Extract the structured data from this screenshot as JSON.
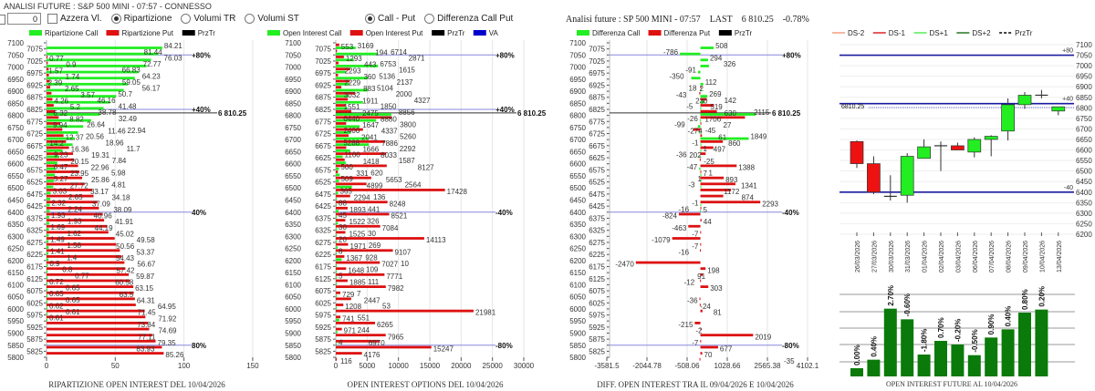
{
  "header": {
    "title": "ANALISI FUTURE : S&P 500 MINI - 07:57 - CONNESSO",
    "number_input_value": "0",
    "azzera_label": "Azzera Vl.",
    "radio_ripartizione": "Ripartizione",
    "radio_volumi_tr": "Volumi TR",
    "radio_volumi_st": "Volumi ST",
    "radio_call_put": "Call - Put",
    "radio_diff_call_put": "Differenza Call Put",
    "info_label": "Analisi future : SP 500 MINI - 07:57",
    "last_label": "LAST",
    "last_value": "6 810.25",
    "last_change": "-0.78%"
  },
  "colors": {
    "call": "#22ee22",
    "put": "#dd1111",
    "prztr": "#000000",
    "va": "#0000cc",
    "level_line": "#8888dd",
    "oi_bar": "#0a7a0a",
    "candle_up": "#22ee22",
    "candle_down": "#ee1111"
  },
  "chart_data": [
    {
      "type": "bar",
      "orientation": "horizontal",
      "title": "RIPARTIZIONE OPEN INTEREST DEL 10/04/2026",
      "legend": [
        "Ripartizione Call",
        "Ripartizione Put",
        "PrzTr"
      ],
      "xlim": [
        0,
        150
      ],
      "xticks": [
        0,
        50,
        100,
        150
      ],
      "ylim": [
        5800,
        7100
      ],
      "strikes": [
        7075,
        7050,
        7025,
        7000,
        6975,
        6950,
        6925,
        6900,
        6875,
        6850,
        6825,
        6800,
        6775,
        6750,
        6725,
        6700,
        6675,
        6650,
        6625,
        6600,
        6575,
        6550,
        6525,
        6500,
        6475,
        6450,
        6425,
        6400,
        6375,
        6350,
        6325,
        6300,
        6275,
        6250,
        6225,
        6200,
        6175,
        6150,
        6125,
        6100,
        6075,
        6050,
        6025,
        6000,
        5975,
        5950,
        5925,
        5900,
        5875,
        5850,
        5825
      ],
      "series": [
        {
          "name": "Ripartizione Call",
          "values": [
            84.21,
            81.44,
            76.03,
            72.77,
            66.83,
            64.23,
            59.05,
            56.17,
            50.7,
            46.16,
            41.48,
            38.78,
            32.49,
            26.64,
            22.94,
            20.56,
            18.96,
            11.7,
            9.23,
            7.84,
            6.47,
            5.98,
            5.27,
            4.81,
            3.03,
            2.65,
            2.32,
            2.24,
            1.93,
            1.93,
            1.69,
            1.62,
            1.49,
            1.58,
            1.41,
            1.4,
            0.9,
            0.8,
            0.77,
            0.72,
            0.65,
            0.65,
            0.65,
            0.62,
            0.61,
            0.61,
            null,
            null,
            null,
            null,
            null
          ]
        },
        {
          "name": "Ripartizione Put",
          "values": [
            null,
            0.77,
            0.9,
            1.57,
            1.74,
            2.39,
            2.65,
            3.57,
            4.26,
            5.2,
            6.32,
            8.82,
            9.94,
            11.46,
            12.37,
            14.2,
            16.36,
            19.31,
            20.15,
            22.96,
            23.95,
            25.86,
            27.72,
            33.17,
            34.18,
            37.09,
            38.09,
            40.96,
            41.91,
            44.19,
            45.02,
            49.58,
            50.56,
            53.37,
            54.43,
            56.67,
            57.42,
            59.87,
            60.58,
            63.15,
            63.5,
            64.31,
            64.95,
            71.45,
            71.92,
            73.84,
            74.69,
            77.11,
            79.35,
            83.93,
            85.26
          ]
        }
      ],
      "levels": [
        {
          "strike": 7050,
          "label": "+80%"
        },
        {
          "strike": 6825,
          "label": "+40%"
        },
        {
          "strike": 6400,
          "label": "40%"
        },
        {
          "strike": 5850,
          "label": "80%"
        }
      ],
      "prztr": {
        "value": 6810.25,
        "label": "6 810.25"
      }
    },
    {
      "type": "bar",
      "orientation": "horizontal",
      "title": "OPEN INTEREST OPTIONS DEL 10/04/2026",
      "legend": [
        "Open Interest Call",
        "Open Interest Put",
        "PrzTr",
        "VA"
      ],
      "xlim": [
        0,
        30000
      ],
      "xticks": [
        0,
        5000,
        10000,
        15000,
        20000,
        25000,
        30000
      ],
      "ylim": [
        5800,
        7100
      ],
      "strikes": [
        7100,
        7075,
        7050,
        7025,
        7000,
        6975,
        6950,
        6925,
        6900,
        6875,
        6850,
        6825,
        6800,
        6775,
        6750,
        6725,
        6700,
        6675,
        6650,
        6625,
        6600,
        6575,
        6550,
        6525,
        6500,
        6475,
        6450,
        6425,
        6400,
        6375,
        6350,
        6325,
        6300,
        6275,
        6250,
        6225,
        6200,
        6175,
        6150,
        6125,
        6100,
        6075,
        6050,
        6025,
        6000,
        5975,
        5950,
        5925,
        5900,
        5875,
        5850,
        5825,
        5800
      ],
      "series": [
        {
          "name": "Open Interest Call",
          "values": [
            null,
            3169,
            6714,
            2871,
            6753,
            1615,
            5136,
            2137,
            5104,
            2000,
            4327,
            1850,
            8856,
            6440,
            3800,
            2400,
            5260,
            5288,
            2292,
            1100,
            1587,
            500,
            620,
            509,
            2564,
            365,
            136,
            88,
            441,
            45,
            326,
            30,
            30,
            20,
            269,
            8,
            928,
            10,
            109,
            5,
            111,
            null,
            7,
            null,
            53,
            null,
            551,
            null,
            244,
            null,
            4,
            null,
            null
          ]
        },
        {
          "name": "Open Interest Put",
          "values": [
            553,
            194,
            1293,
            443,
            2293,
            360,
            2229,
            883,
            3032,
            1911,
            1551,
            2475,
            8880,
            1647,
            4337,
            2041,
            7886,
            1666,
            8033,
            1418,
            8127,
            331,
            5653,
            4899,
            17428,
            2294,
            8248,
            1893,
            8521,
            1522,
            7084,
            1525,
            14113,
            1971,
            9107,
            1367,
            7027,
            1648,
            7771,
            1885,
            7982,
            729,
            2447,
            1208,
            21981,
            741,
            6265,
            971,
            7965,
            6970,
            15247,
            4176,
            116
          ]
        }
      ],
      "levels": [
        {
          "strike": 7050,
          "label": "+80%"
        },
        {
          "strike": 6825,
          "label": "+40%"
        },
        {
          "strike": 6400,
          "label": "-40%"
        },
        {
          "strike": 5850,
          "label": "-80%"
        }
      ],
      "prztr": {
        "value": 6810.25,
        "label": "6 810.25"
      }
    },
    {
      "type": "bar",
      "orientation": "horizontal",
      "title": "DIFF. OPEN INTEREST TRA IL 09/04/2026 E 10/04/2026",
      "legend": [
        "Differenza Call",
        "Differenza Put",
        "PrzTr"
      ],
      "xlim": [
        -3581.5,
        4102.1
      ],
      "xticks": [
        "-3581.5",
        "-2044.78",
        "-508.06",
        "1028.66",
        "2565.38",
        "4102.1"
      ],
      "ylim": [
        5800,
        7100
      ],
      "strikes": [
        7100,
        7075,
        7050,
        7025,
        7000,
        6975,
        6950,
        6925,
        6900,
        6875,
        6850,
        6825,
        6800,
        6775,
        6750,
        6725,
        6700,
        6675,
        6650,
        6625,
        6600,
        6575,
        6550,
        6525,
        6500,
        6475,
        6450,
        6425,
        6400,
        6375,
        6350,
        6325,
        6300,
        6275,
        6250,
        6225,
        6200,
        6175,
        6150,
        6125,
        6100,
        6075,
        6050,
        6025,
        6000,
        5975,
        5950,
        5925,
        5900,
        5875,
        5850,
        5825,
        5800
      ],
      "series": [
        {
          "name": "Differenza Call",
          "values": [
            null,
            508,
            -786,
            294,
            326,
            -91,
            -350,
            112,
            18,
            269,
            142,
            -5,
            2115,
            -26,
            -99,
            -45,
            1849,
            -1,
            1,
            -36,
            null,
            -47,
            1,
            1,
            -3,
            null,
            null,
            -1,
            -16,
            null,
            null,
            null,
            null,
            null,
            null,
            null,
            null,
            null,
            null,
            null,
            null,
            null,
            null,
            null,
            null,
            null,
            null,
            null,
            null,
            null,
            null,
            null,
            null
          ]
        },
        {
          "name": "Differenza Put",
          "values": [
            null,
            null,
            null,
            null,
            null,
            null,
            null,
            2,
            -43,
            230,
            519,
            630,
            1706,
            27,
            -274,
            61,
            860,
            497,
            202,
            -25,
            1388,
            7,
            893,
            1341,
            1172,
            874,
            2293,
            5,
            -824,
            44,
            -463,
            -7,
            -1079,
            -7,
            -16,
            null,
            -2470,
            198,
            91,
            -12,
            303,
            null,
            -36,
            -24,
            81,
            null,
            -215,
            -2,
            2019,
            -7,
            677,
            70,
            -35
          ]
        }
      ],
      "levels": [
        {
          "strike": 7050,
          "label": "+80%"
        },
        {
          "strike": 6400,
          "label": "-40%"
        },
        {
          "strike": 5850,
          "label": "-80%"
        }
      ],
      "prztr": {
        "value": 6810.25,
        "label": "6 810.25"
      }
    },
    {
      "type": "candlestick",
      "legend": [
        "DS-2",
        "DS-1",
        "DS+1",
        "DS+2",
        "PrzTr"
      ],
      "legend_colors": [
        "#f0a080",
        "#dd2222",
        "#55ee55",
        "#227722",
        "#000000"
      ],
      "ylim": [
        6200,
        7100
      ],
      "yticks": [
        6200,
        6250,
        6300,
        6350,
        6400,
        6450,
        6500,
        6550,
        6600,
        6650,
        6700,
        6750,
        6800,
        6850,
        6900,
        6950,
        7000,
        7050,
        7100
      ],
      "candles": [
        {
          "date": "26/03/2026",
          "open": 6640,
          "high": 6645,
          "low": 6515,
          "close": 6535
        },
        {
          "date": "27/03/2026",
          "open": 6535,
          "high": 6570,
          "low": 6390,
          "close": 6400
        },
        {
          "date": "30/03/2026",
          "open": 6380,
          "high": 6480,
          "low": 6360,
          "close": 6380
        },
        {
          "date": "31/03/2026",
          "open": 6385,
          "high": 6585,
          "low": 6350,
          "close": 6570
        },
        {
          "date": "01/04/2026",
          "open": 6560,
          "high": 6650,
          "low": 6560,
          "close": 6615
        },
        {
          "date": "02/04/2026",
          "open": 6620,
          "high": 6640,
          "low": 6500,
          "close": 6620
        },
        {
          "date": "03/04/2026",
          "open": 6620,
          "high": 6635,
          "low": 6600,
          "close": 6600
        },
        {
          "date": "06/04/2026",
          "open": 6590,
          "high": 6660,
          "low": 6565,
          "close": 6650
        },
        {
          "date": "07/04/2026",
          "open": 6650,
          "high": 6670,
          "low": 6570,
          "close": 6665
        },
        {
          "date": "08/04/2026",
          "open": 6690,
          "high": 6845,
          "low": 6645,
          "close": 6815
        },
        {
          "date": "09/04/2026",
          "open": 6815,
          "high": 6875,
          "low": 6795,
          "close": 6860
        },
        {
          "date": "10/04/2026",
          "open": 6860,
          "high": 6885,
          "low": 6845,
          "close": 6860
        },
        {
          "date": "13/04/2026",
          "open": 6785,
          "high": 6805,
          "low": 6765,
          "close": 6805
        }
      ],
      "levels": [
        {
          "value": 7050,
          "label": "+80"
        },
        {
          "value": 6820,
          "label": "+40"
        },
        {
          "value": 6400,
          "label": "-40"
        }
      ],
      "prztr": {
        "value": 6810.25,
        "label": "6810.25"
      }
    },
    {
      "type": "bar",
      "title": "OPEN INTEREST FUTURE AL 10/04/2026",
      "ylim": [
        0,
        270
      ],
      "values": [
        27,
        55,
        223,
        188,
        72,
        117,
        105,
        70,
        128,
        155,
        210,
        220
      ],
      "labels": [
        "0.00%",
        "0.40%",
        "2.70%",
        "-0.60%",
        "-1.80%",
        "0.70%",
        "-0.20%",
        "-0.50%",
        "0.90%",
        "0.40%",
        "0.80%",
        "0.20%"
      ],
      "grid": true
    }
  ]
}
